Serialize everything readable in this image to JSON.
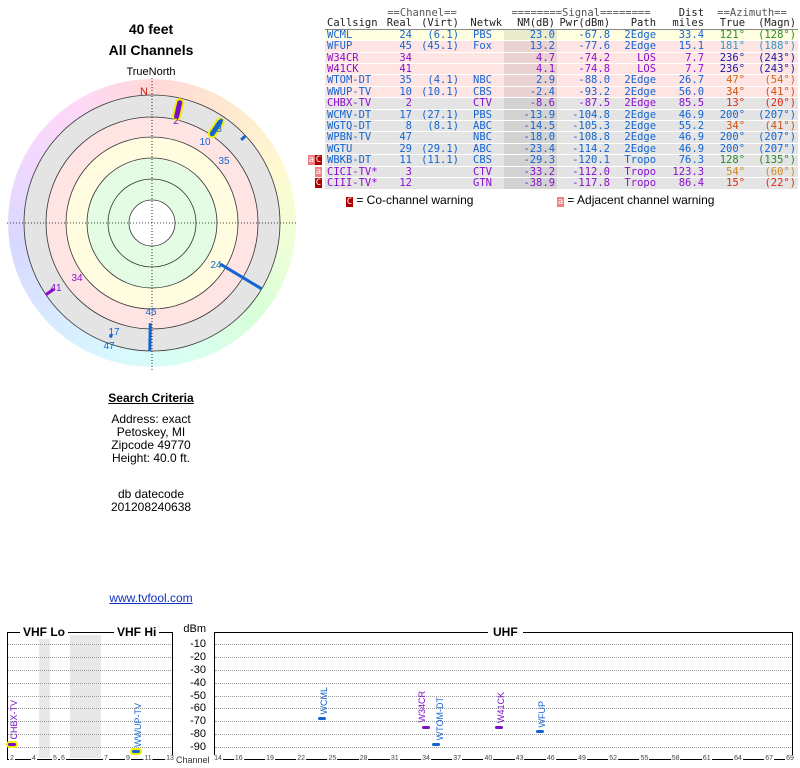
{
  "header": {
    "height": "40 feet",
    "subtitle": "All Channels"
  },
  "polar": {
    "north_label": "TrueNorth",
    "n_marker": "N"
  },
  "search": {
    "title": "Search Criteria",
    "lines": [
      "Address: exact",
      "Petoskey, MI",
      "Zipcode 49770",
      "Height: 40.0 ft."
    ],
    "db_label": "db datecode",
    "db_value": "201208240638"
  },
  "link": "www.tvfool.com",
  "table": {
    "group_headers": {
      "channel": "==Channel==",
      "signal": "========Signal========",
      "dist": "Dist",
      "azimuth": "==Azimuth=="
    },
    "columns": [
      "Callsign",
      "Real",
      "(Virt)",
      "Netwk",
      "NM(dB)",
      "Pwr(dBm)",
      "Path",
      "miles",
      "True",
      "(Magn)"
    ],
    "rows": [
      {
        "callsign": "WCML",
        "real": "24",
        "virt": "(6.1)",
        "netwk": "PBS",
        "nm": "23.0",
        "pwr": "-67.8",
        "path": "2Edge",
        "dist": "33.4",
        "true": "121°",
        "magn": "(128°)",
        "color": "#1464d2",
        "azcolor": "#2a8a2a",
        "bg": "#ffffe0",
        "warn": ""
      },
      {
        "callsign": "WFUP",
        "real": "45",
        "virt": "(45.1)",
        "netwk": "Fox",
        "nm": "13.2",
        "pwr": "-77.6",
        "path": "2Edge",
        "dist": "15.1",
        "true": "181°",
        "magn": "(188°)",
        "color": "#1464d2",
        "azcolor": "#2a9ac0",
        "bg": "#ffe4e4",
        "warn": ""
      },
      {
        "callsign": "W34CR",
        "real": "34",
        "virt": "",
        "netwk": "",
        "nm": "4.7",
        "pwr": "-74.2",
        "path": "LOS",
        "dist": "7.7",
        "true": "236°",
        "magn": "(243°)",
        "color": "#8a10d0",
        "azcolor": "#1818a0",
        "bg": "#ffe4e4",
        "warn": ""
      },
      {
        "callsign": "W41CK",
        "real": "41",
        "virt": "",
        "netwk": "",
        "nm": "4.1",
        "pwr": "-74.8",
        "path": "LOS",
        "dist": "7.7",
        "true": "236°",
        "magn": "(243°)",
        "color": "#8a10d0",
        "azcolor": "#1818a0",
        "bg": "#ffe4e4",
        "warn": ""
      },
      {
        "callsign": "WTOM-DT",
        "real": "35",
        "virt": "(4.1)",
        "netwk": "NBC",
        "nm": "2.9",
        "pwr": "-88.0",
        "path": "2Edge",
        "dist": "26.7",
        "true": "47°",
        "magn": "(54°)",
        "color": "#1464d2",
        "azcolor": "#d06a10",
        "bg": "#ffe4e4",
        "warn": ""
      },
      {
        "callsign": "WWUP-TV",
        "real": "10",
        "virt": "(10.1)",
        "netwk": "CBS",
        "nm": "-2.4",
        "pwr": "-93.2",
        "path": "2Edge",
        "dist": "56.0",
        "true": "34°",
        "magn": "(41°)",
        "color": "#1464d2",
        "azcolor": "#d05010",
        "bg": "#ffe4e4",
        "warn": ""
      },
      {
        "callsign": "CHBX-TV",
        "real": "2",
        "virt": "",
        "netwk": "CTV",
        "nm": "-8.6",
        "pwr": "-87.5",
        "path": "2Edge",
        "dist": "85.5",
        "true": "13°",
        "magn": "(20°)",
        "color": "#8a10d0",
        "azcolor": "#e02810",
        "bg": "#e4e4e4",
        "warn": ""
      },
      {
        "callsign": "WCMV-DT",
        "real": "17",
        "virt": "(27.1)",
        "netwk": "PBS",
        "nm": "-13.9",
        "pwr": "-104.8",
        "path": "2Edge",
        "dist": "46.9",
        "true": "200°",
        "magn": "(207°)",
        "color": "#1464d2",
        "azcolor": "#1464d2",
        "bg": "#e4e4e4",
        "warn": ""
      },
      {
        "callsign": "WGTQ-DT",
        "real": "8",
        "virt": "(8.1)",
        "netwk": "ABC",
        "nm": "-14.5",
        "pwr": "-105.3",
        "path": "2Edge",
        "dist": "55.2",
        "true": "34°",
        "magn": "(41°)",
        "color": "#1464d2",
        "azcolor": "#d05010",
        "bg": "#e4e4e4",
        "warn": ""
      },
      {
        "callsign": "WPBN-TV",
        "real": "47",
        "virt": "",
        "netwk": "NBC",
        "nm": "-18.0",
        "pwr": "-108.8",
        "path": "2Edge",
        "dist": "46.9",
        "true": "200°",
        "magn": "(207°)",
        "color": "#1464d2",
        "azcolor": "#1464d2",
        "bg": "#e4e4e4",
        "warn": ""
      },
      {
        "callsign": "WGTU",
        "real": "29",
        "virt": "(29.1)",
        "netwk": "ABC",
        "nm": "-23.4",
        "pwr": "-114.2",
        "path": "2Edge",
        "dist": "46.9",
        "true": "200°",
        "magn": "(207°)",
        "color": "#1464d2",
        "azcolor": "#1464d2",
        "bg": "#e4e4e4",
        "warn": ""
      },
      {
        "callsign": "WBKB-DT",
        "real": "11",
        "virt": "(11.1)",
        "netwk": "CBS",
        "nm": "-29.3",
        "pwr": "-120.1",
        "path": "Tropo",
        "dist": "76.3",
        "true": "128°",
        "magn": "(135°)",
        "color": "#1464d2",
        "azcolor": "#2a8a2a",
        "bg": "#e4e4e4",
        "warn": "aC"
      },
      {
        "callsign": "CICI-TV*",
        "real": "3",
        "virt": "",
        "netwk": "CTV",
        "nm": "-33.2",
        "pwr": "-112.0",
        "path": "Tropo",
        "dist": "123.3",
        "true": "54°",
        "magn": "(60°)",
        "color": "#8a10d0",
        "azcolor": "#d08a20",
        "bg": "#e4e4e4",
        "warn": "a"
      },
      {
        "callsign": "CIII-TV*",
        "real": "12",
        "virt": "",
        "netwk": "GTN",
        "nm": "-38.9",
        "pwr": "-117.8",
        "path": "Tropo",
        "dist": "86.4",
        "true": "15°",
        "magn": "(22°)",
        "color": "#8a10d0",
        "azcolor": "#e02810",
        "bg": "#e4e4e4",
        "warn": "C"
      }
    ],
    "legend": {
      "co_badge": "C",
      "co_label": "= Co-channel warning",
      "adj_badge": "a",
      "adj_label": "= Adjacent channel warning"
    }
  },
  "polar_marks": [
    {
      "label": "2",
      "az": 13,
      "nm": -8.6,
      "color": "#7a10c8",
      "highlight": true
    },
    {
      "label": "8",
      "az": 34,
      "nm": -14.5,
      "color": "#1464d2",
      "highlight": true
    },
    {
      "label": "10",
      "az": 34,
      "nm": -2.4,
      "color": "#1464d2",
      "highlight": false
    },
    {
      "label": "35",
      "az": 47,
      "nm": 2.9,
      "color": "#1464d2",
      "highlight": false
    },
    {
      "label": "24",
      "az": 121,
      "nm": 23.0,
      "color": "#1464d2",
      "highlight": false
    },
    {
      "label": "45",
      "az": 181,
      "nm": 13.2,
      "color": "#1464d2",
      "highlight": false
    },
    {
      "label": "17",
      "az": 200,
      "nm": -13.9,
      "color": "#1464d2",
      "highlight": false
    },
    {
      "label": "47",
      "az": 200,
      "nm": -18.0,
      "color": "#1464d2",
      "highlight": false
    },
    {
      "label": "34",
      "az": 236,
      "nm": 4.7,
      "color": "#8a10d0",
      "highlight": false
    },
    {
      "label": "41",
      "az": 236,
      "nm": 4.1,
      "color": "#8a10d0",
      "highlight": false
    }
  ],
  "spectrum": {
    "vhf_lo": "VHF Lo",
    "vhf_hi": "VHF Hi",
    "uhf": "UHF",
    "unit": "dBm",
    "channel_label": "Channel",
    "dbm_ticks": [
      -10,
      -20,
      -30,
      -40,
      -50,
      -60,
      -70,
      -80,
      -90
    ],
    "vhf_channels": [
      "2",
      "4",
      "5",
      "6",
      "7",
      "9",
      "11",
      "13"
    ],
    "uhf_channels": [
      "14",
      "16",
      "19",
      "22",
      "25",
      "28",
      "31",
      "34",
      "37",
      "40",
      "43",
      "46",
      "49",
      "52",
      "55",
      "58",
      "61",
      "64",
      "67",
      "69"
    ],
    "stations": [
      {
        "name": "CHBX-TV",
        "ch": 2,
        "pwr": -87.5,
        "color": "#7a10c8",
        "highlight": true
      },
      {
        "name": "WWUP-TV",
        "ch": 10,
        "pwr": -93.2,
        "color": "#1464d2",
        "highlight": true
      },
      {
        "name": "WCML",
        "ch": 24,
        "pwr": -67.8,
        "color": "#1464d2",
        "highlight": false
      },
      {
        "name": "W34CR",
        "ch": 34,
        "pwr": -74.2,
        "color": "#7a10c8",
        "highlight": false
      },
      {
        "name": "WTOM-DT",
        "ch": 35,
        "pwr": -88.0,
        "color": "#1464d2",
        "highlight": false
      },
      {
        "name": "W41CK",
        "ch": 41,
        "pwr": -74.8,
        "color": "#7a10c8",
        "highlight": false
      },
      {
        "name": "WFUP",
        "ch": 45,
        "pwr": -77.6,
        "color": "#1464d2",
        "highlight": false
      }
    ]
  }
}
